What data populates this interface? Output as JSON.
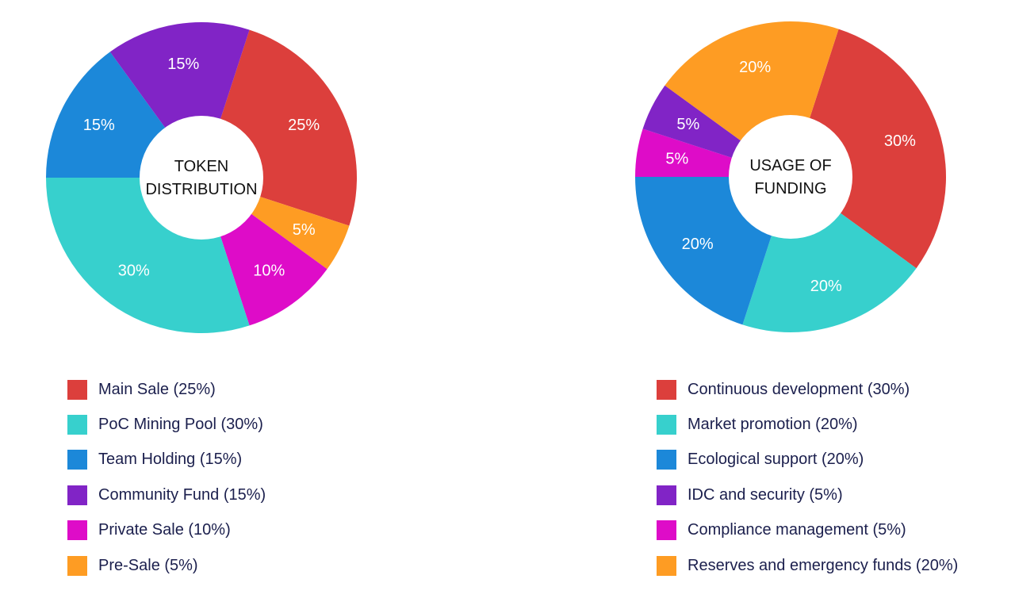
{
  "colors": {
    "red": "#dc3f3c",
    "cyan": "#37d0cd",
    "blue": "#1c88d9",
    "purple": "#8124c6",
    "magenta": "#de0cc8",
    "orange": "#fe9c23",
    "label": "#ffffff",
    "center_text": "#111111",
    "legend_text": "#1b1f4d"
  },
  "chart_data": [
    {
      "type": "pie",
      "center_label": [
        "TOKEN",
        "DISTRIBUTION"
      ],
      "slices": [
        {
          "name": "Main Sale",
          "value": 25,
          "label": "25%",
          "legend": "Main Sale (25%)",
          "color": "#dc3f3c"
        },
        {
          "name": "Pre-Sale",
          "value": 5,
          "label": "5%",
          "legend": "Pre-Sale (5%)",
          "color": "#fe9c23"
        },
        {
          "name": "Private Sale",
          "value": 10,
          "label": "10%",
          "legend": "Private Sale (10%)",
          "color": "#de0cc8"
        },
        {
          "name": "PoC Mining Pool",
          "value": 30,
          "label": "30%",
          "legend": "PoC Mining Pool (30%)",
          "color": "#37d0cd"
        },
        {
          "name": "Team Holding",
          "value": 15,
          "label": "15%",
          "legend": "Team Holding (15%)",
          "color": "#1c88d9"
        },
        {
          "name": "Community Fund",
          "value": 15,
          "label": "15%",
          "legend": "Community Fund (15%)",
          "color": "#8124c6"
        }
      ],
      "legend_order": [
        "Main Sale",
        "PoC Mining Pool",
        "Team Holding",
        "Community Fund",
        "Private Sale",
        "Pre-Sale"
      ]
    },
    {
      "type": "pie",
      "center_label": [
        "USAGE OF",
        "FUNDING"
      ],
      "slices": [
        {
          "name": "Continuous development",
          "value": 30,
          "label": "30%",
          "legend": "Continuous development (30%)",
          "color": "#dc3f3c"
        },
        {
          "name": "Market promotion",
          "value": 20,
          "label": "20%",
          "legend": "Market promotion (20%)",
          "color": "#37d0cd"
        },
        {
          "name": "Ecological support",
          "value": 20,
          "label": "20%",
          "legend": "Ecological support (20%)",
          "color": "#1c88d9"
        },
        {
          "name": "Compliance management",
          "value": 5,
          "label": "5%",
          "legend": "Compliance management (5%)",
          "color": "#de0cc8"
        },
        {
          "name": "IDC and security",
          "value": 5,
          "label": "5%",
          "legend": "IDC and security (5%)",
          "color": "#8124c6"
        },
        {
          "name": "Reserves and emergency funds",
          "value": 20,
          "label": "20%",
          "legend": "Reserves and emergency funds (20%)",
          "color": "#fe9c23"
        }
      ],
      "legend_order": [
        "Continuous development",
        "Market promotion",
        "Ecological support",
        "IDC and security",
        "Compliance management",
        "Reserves and emergency funds"
      ]
    }
  ]
}
